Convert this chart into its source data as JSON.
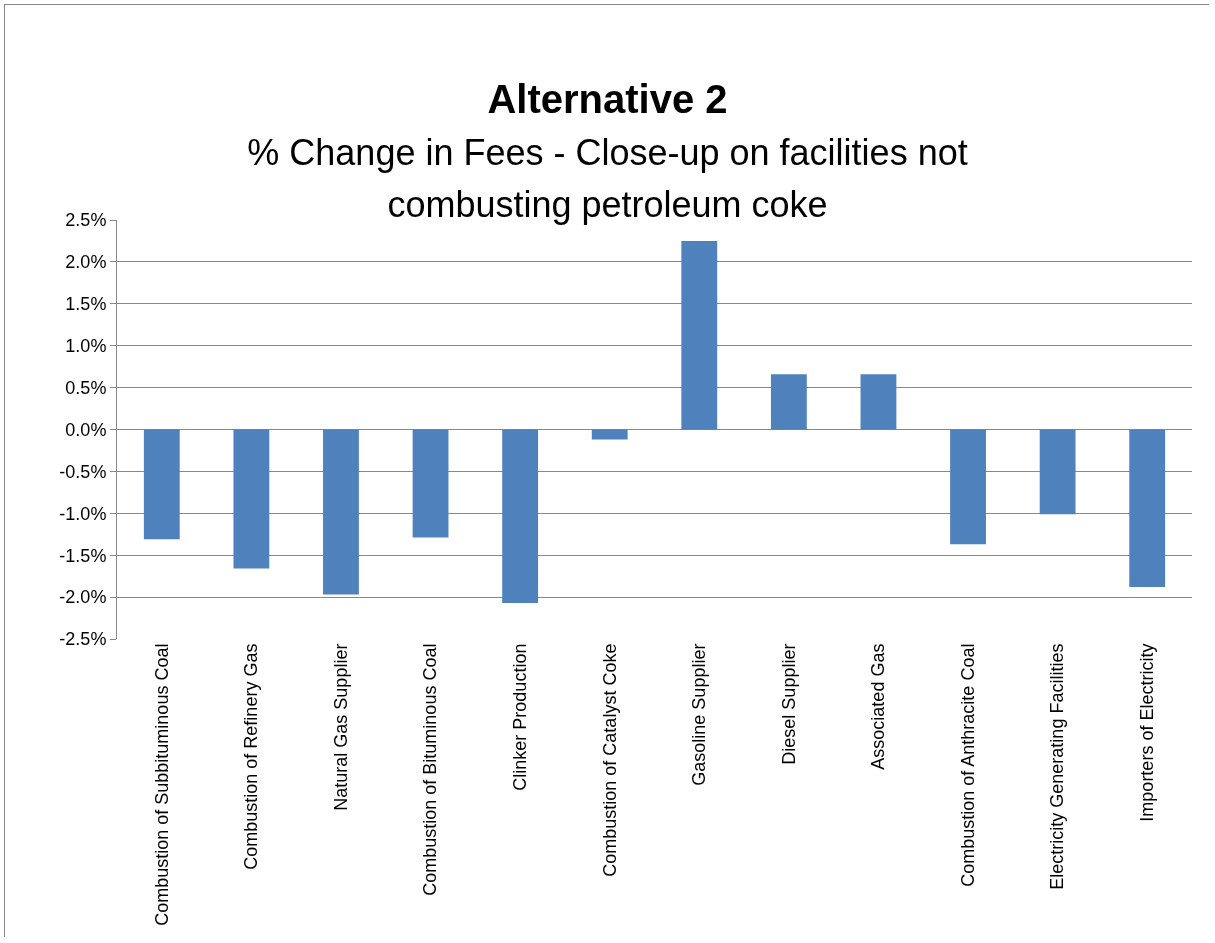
{
  "chart_data": {
    "type": "bar",
    "title": "Alternative 2",
    "subtitle": "% Change in Fees - Close-up on facilities not combusting petroleum coke",
    "categories": [
      "Combustion of Subbituminous Coal",
      "Combustion of Refinery Gas",
      "Natural Gas Supplier",
      "Combustion of Bituminous Coal",
      "Clinker Production",
      "Combustion of Catalyst Coke",
      "Gasoline Supplier",
      "Diesel Supplier",
      "Associated Gas",
      "Combustion of Anthracite Coal",
      "Electricity Generating Facilities",
      "Importers of Electricity"
    ],
    "values": [
      -1.31,
      -1.66,
      -1.97,
      -1.29,
      -2.07,
      -0.12,
      2.25,
      0.66,
      0.66,
      -1.37,
      -1.01,
      -1.88
    ],
    "color": "#4f81bd",
    "ylim": [
      -2.5,
      2.5
    ],
    "yticks": [
      {
        "value": -2.5,
        "label": "-2.5%"
      },
      {
        "value": -2,
        "label": "-2.0%"
      },
      {
        "value": -1.5,
        "label": "-1.5%"
      },
      {
        "value": -1,
        "label": "-1.0%"
      },
      {
        "value": -0.5,
        "label": "-0.5%"
      },
      {
        "value": 0,
        "label": "0.0%"
      },
      {
        "value": 0.5,
        "label": "0.5%"
      },
      {
        "value": 1,
        "label": "1.0%"
      },
      {
        "value": 1.5,
        "label": "1.5%"
      },
      {
        "value": 2,
        "label": "2.0%"
      },
      {
        "value": 2.5,
        "label": "2.5%"
      }
    ],
    "grid": "y"
  }
}
